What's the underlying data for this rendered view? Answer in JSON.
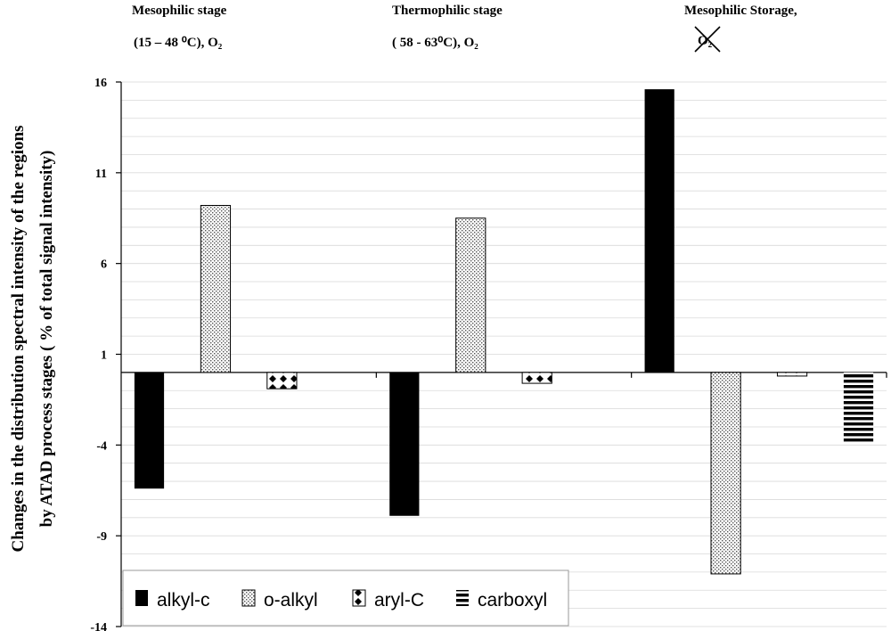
{
  "chart_data": {
    "type": "bar",
    "groups": [
      {
        "title": "Mesophilic stage",
        "condition": "(15 – 48 ⁰C), O₂"
      },
      {
        "title": "Thermophilic stage",
        "condition": "( 58 - 63⁰C), O₂"
      },
      {
        "title": "Mesophilic Storage,",
        "condition": "O₂",
        "condition_crossed_out": true
      }
    ],
    "series": [
      {
        "name": "alkyl-c",
        "values": [
          -6.4,
          -7.9,
          15.6
        ],
        "pattern": "solid-black"
      },
      {
        "name": "o-alkyl",
        "values": [
          9.2,
          8.5,
          -11.1
        ],
        "pattern": "fine-dots"
      },
      {
        "name": "aryl-C",
        "values": [
          -0.9,
          -0.6,
          -0.2
        ],
        "pattern": "diamond-dots"
      },
      {
        "name": "carboxyl",
        "values": [
          0,
          0,
          -3.9
        ],
        "pattern": "horizontal-stripes"
      }
    ],
    "ylabel": [
      "Changes in the distribution spectral intensity of the regions",
      "by ATAD process stages ( % of  total signal intensity)"
    ],
    "ylim": [
      -14,
      16
    ],
    "yticks": [
      16,
      11,
      6,
      1,
      -4,
      -9,
      -14
    ],
    "grid": true,
    "legend_position": "bottom-left"
  }
}
